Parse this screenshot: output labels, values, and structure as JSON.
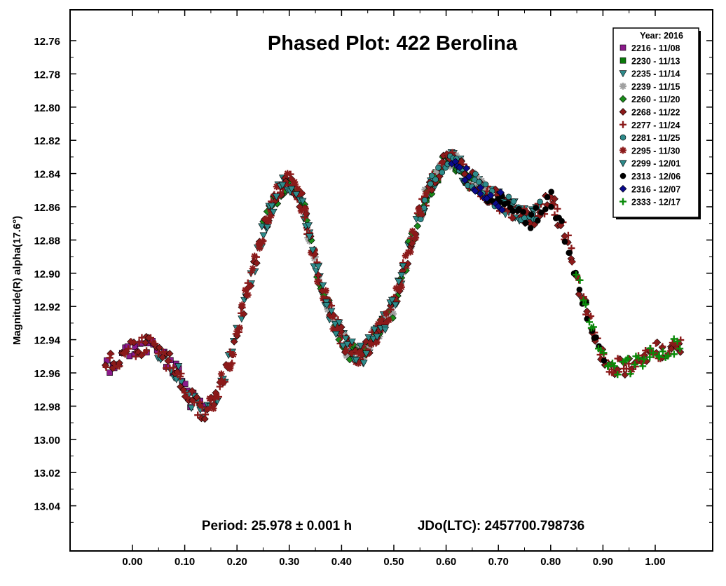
{
  "chart_data": {
    "type": "scatter",
    "title": "Phased Plot: 422 Berolina",
    "xlabel": "",
    "ylabel": "Magnitude(R) alpha(17.6°)",
    "xlim": [
      -0.12,
      1.12
    ],
    "ylim": [
      13.07,
      12.74
    ],
    "y_inverted": true,
    "x_ticks": [
      "0.00",
      "0.10",
      "0.20",
      "0.30",
      "0.40",
      "0.50",
      "0.60",
      "0.70",
      "0.80",
      "0.90",
      "1.00"
    ],
    "x_tick_values": [
      0.0,
      0.1,
      0.2,
      0.3,
      0.4,
      0.5,
      0.6,
      0.7,
      0.8,
      0.9,
      1.0
    ],
    "y_ticks": [
      "12.76",
      "12.78",
      "12.80",
      "12.82",
      "12.84",
      "12.86",
      "12.88",
      "12.90",
      "12.92",
      "12.94",
      "12.96",
      "12.98",
      "13.00",
      "13.02",
      "13.04"
    ],
    "y_tick_values": [
      12.76,
      12.78,
      12.8,
      12.82,
      12.84,
      12.86,
      12.88,
      12.9,
      12.92,
      12.94,
      12.96,
      12.98,
      13.0,
      13.02,
      13.04
    ],
    "annotation_period": "Period: 25.978 ± 0.001 h",
    "annotation_jdo": "JDo(LTC): 2457700.798736",
    "legend_title": "Year: 2016",
    "legend_placement": "top-right",
    "grid": false,
    "curve": {
      "x": [
        -0.05,
        -0.02,
        0.0,
        0.03,
        0.05,
        0.08,
        0.11,
        0.135,
        0.16,
        0.19,
        0.22,
        0.25,
        0.28,
        0.3,
        0.325,
        0.35,
        0.38,
        0.41,
        0.44,
        0.47,
        0.5,
        0.53,
        0.56,
        0.59,
        0.61,
        0.64,
        0.68,
        0.72,
        0.76,
        0.8,
        0.83,
        0.86,
        0.89,
        0.92,
        0.95,
        0.98,
        1.0,
        1.03,
        1.05
      ],
      "y": [
        12.955,
        12.95,
        12.945,
        12.943,
        12.947,
        12.957,
        12.975,
        12.985,
        12.975,
        12.95,
        12.91,
        12.875,
        12.85,
        12.845,
        12.858,
        12.895,
        12.925,
        12.945,
        12.95,
        12.935,
        12.92,
        12.885,
        12.855,
        12.835,
        12.83,
        12.842,
        12.852,
        12.86,
        12.868,
        12.855,
        12.878,
        12.915,
        12.945,
        12.958,
        12.955,
        12.95,
        12.948,
        12.945,
        12.943
      ]
    },
    "series": [
      {
        "name": "2216 - 11/08",
        "marker": "square",
        "color": "#8b1a8b",
        "x_range": [
          -0.05,
          0.14
        ]
      },
      {
        "name": "2230 - 11/13",
        "marker": "square",
        "color": "#0a7a0a",
        "x_range": [
          0.55,
          0.66
        ],
        "edge": "#000000"
      },
      {
        "name": "2235 - 11/14",
        "marker": "tri-down",
        "color": "#2e8b8b",
        "x_range": [
          0.05,
          0.78
        ]
      },
      {
        "name": "2239 - 11/15",
        "marker": "star",
        "color": "#a0a0a0",
        "x_range": [
          0.33,
          0.68
        ]
      },
      {
        "name": "2260 - 11/20",
        "marker": "diamond",
        "color": "#1a8b1a",
        "x_range": [
          0.25,
          0.65
        ]
      },
      {
        "name": "2268 - 11/22",
        "marker": "diamond",
        "color": "#8b1a1a",
        "x_range": [
          -0.05,
          1.05
        ]
      },
      {
        "name": "2277 - 11/24",
        "marker": "plus",
        "color": "#8b1a1a",
        "x_range": [
          -0.05,
          1.05
        ]
      },
      {
        "name": "2281 - 11/25",
        "marker": "circle",
        "color": "#2e8b8b",
        "x_range": [
          0.55,
          0.78
        ]
      },
      {
        "name": "2295 - 11/30",
        "marker": "star",
        "color": "#8b1a1a",
        "x_range": [
          0.15,
          0.56
        ]
      },
      {
        "name": "2299 - 12/01",
        "marker": "tri-down",
        "color": "#2e8b8b",
        "x_range": [
          0.25,
          0.52
        ]
      },
      {
        "name": "2313 - 12/06",
        "marker": "circle",
        "color": "#000000",
        "x_range": [
          0.68,
          0.9
        ]
      },
      {
        "name": "2316 - 12/07",
        "marker": "diamond",
        "color": "#0a0a8b",
        "x_range": [
          0.61,
          0.71
        ]
      },
      {
        "name": "2333 - 12/17",
        "marker": "plus",
        "color": "#0a8b0a",
        "x_range": [
          0.85,
          1.05
        ]
      }
    ]
  }
}
